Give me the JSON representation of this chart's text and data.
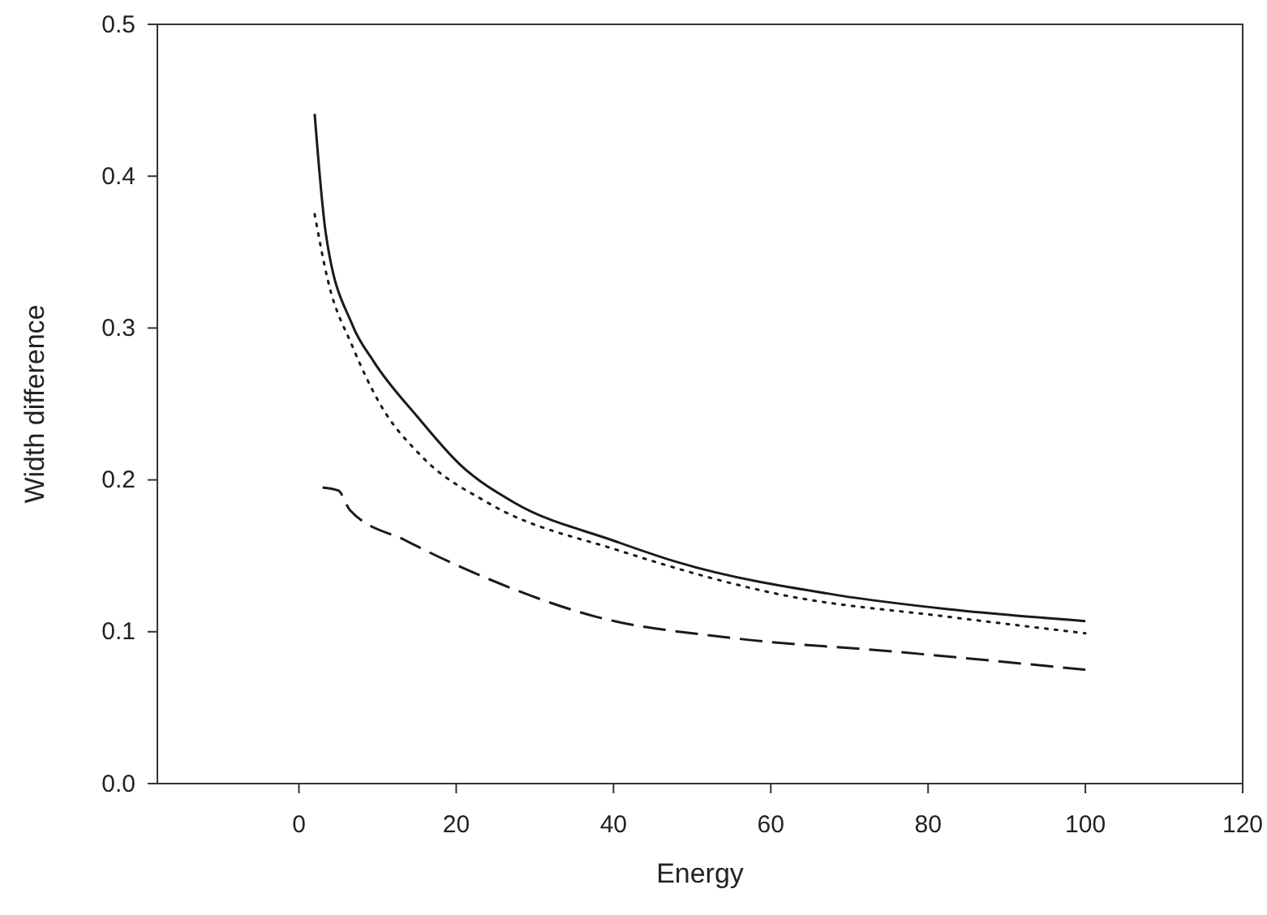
{
  "chart_data": {
    "type": "line",
    "xlabel": "Energy",
    "ylabel": "Width difference",
    "xlim": [
      -18,
      120
    ],
    "ylim": [
      0,
      0.5
    ],
    "xticks": [
      0,
      20,
      40,
      60,
      80,
      100,
      120
    ],
    "yticks": [
      {
        "value": 0,
        "label": "0.0"
      },
      0.1,
      0.2,
      0.3,
      0.4,
      0.5
    ],
    "series": [
      {
        "color": "#1a1a1a",
        "line_style": "solid",
        "x": [
          2,
          3.4,
          6.8,
          9.5,
          15,
          20.5,
          27.4,
          40,
          48,
          68.6,
          82.3,
          100
        ],
        "values": [
          0.441,
          0.363,
          0.302,
          0.278,
          0.242,
          0.21,
          0.185,
          0.16,
          0.146,
          0.124,
          0.115,
          0.107
        ]
      },
      {
        "color": "#1a1a1a",
        "line_style": "dotted",
        "x": [
          2,
          3.7,
          6.8,
          10.2,
          15.7,
          24,
          41,
          61.7,
          82.3,
          100
        ],
        "values": [
          0.375,
          0.331,
          0.288,
          0.251,
          0.215,
          0.185,
          0.153,
          0.124,
          0.11,
          0.099
        ]
      },
      {
        "color": "#1a1a1a",
        "line_style": "dashed",
        "x": [
          3,
          5,
          6.5,
          13.6,
          24,
          37.7,
          54.9,
          75.5,
          100
        ],
        "values": [
          0.195,
          0.193,
          0.18,
          0.16,
          0.135,
          0.11,
          0.096,
          0.087,
          0.075
        ]
      }
    ]
  }
}
